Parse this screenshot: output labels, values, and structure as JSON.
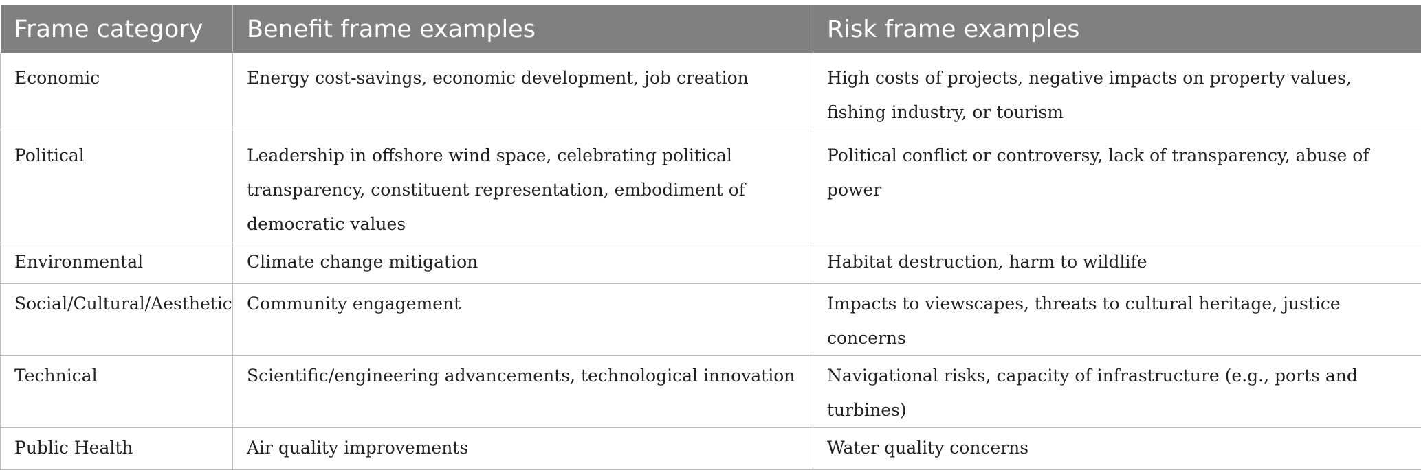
{
  "table": {
    "headers": [
      "Frame category",
      "Benefit frame examples",
      "Risk frame examples"
    ],
    "rows": [
      {
        "category": "Economic",
        "benefit": "Energy cost-savings, economic development, job creation",
        "risk": "High costs of projects, negative impacts on property values, fishing industry, or tourism"
      },
      {
        "category": "Political",
        "benefit": "Leadership in offshore wind space, celebrating political transparency, constituent representation, embodiment of democratic values",
        "risk": "Political conflict or controversy, lack of transparency, abuse of power"
      },
      {
        "category": "Environmental",
        "benefit": "Climate change mitigation",
        "risk": "Habitat destruction, harm to wildlife"
      },
      {
        "category": "Social/Cultural/Aesthetic",
        "benefit": "Community engagement",
        "risk": "Impacts to viewscapes, threats to cultural heritage, justice concerns"
      },
      {
        "category": "Technical",
        "benefit": "Scientific/engineering advancements, technological innovation",
        "risk": "Navigational risks, capacity of infrastructure (e.g., ports and turbines)"
      },
      {
        "category": "Public Health",
        "benefit": "Air quality improvements",
        "risk": "Water quality concerns"
      }
    ]
  },
  "colors": {
    "header_background": "#7f807f",
    "header_text": "#ffffff",
    "grid_lines": "#bdbdbd",
    "body_text": "#222222"
  }
}
